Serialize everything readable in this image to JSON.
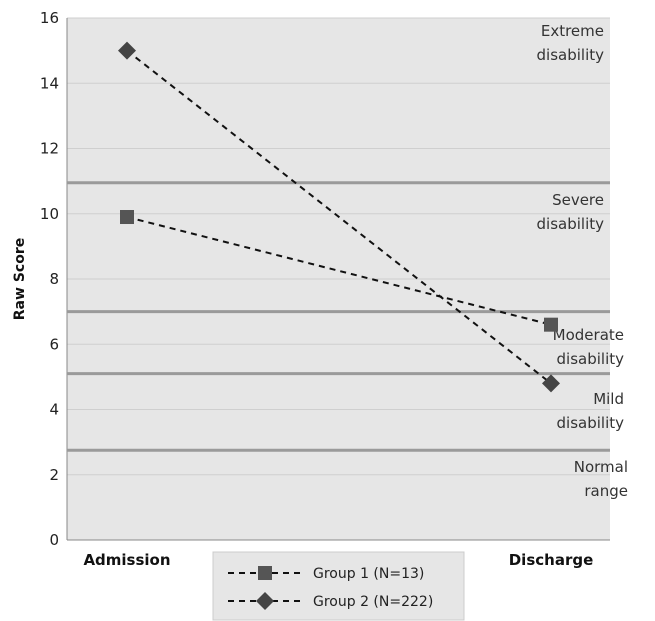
{
  "chart_data": {
    "type": "line",
    "title": "",
    "xlabel": "",
    "ylabel": "Raw Score",
    "categories": [
      "Admission",
      "Discharge"
    ],
    "ylim": [
      0,
      16
    ],
    "yticks": [
      0,
      2,
      4,
      6,
      8,
      10,
      12,
      14,
      16
    ],
    "grid": true,
    "series": [
      {
        "name": "Group 1 (N=13)",
        "marker": "square",
        "values": [
          9.9,
          6.6
        ],
        "color": "#555555"
      },
      {
        "name": "Group 2 (N=222)",
        "marker": "diamond",
        "values": [
          15.0,
          4.8
        ],
        "color": "#444444"
      }
    ],
    "thresholds": [
      2.75,
      5.1,
      7.0,
      10.95
    ],
    "bands": [
      {
        "label": [
          "Extreme",
          "disability"
        ]
      },
      {
        "label": [
          "Severe",
          "disability"
        ]
      },
      {
        "label": [
          "Moderate",
          "disability"
        ]
      },
      {
        "label": [
          "Mild",
          "disability"
        ]
      },
      {
        "label": [
          "Normal",
          "range"
        ]
      }
    ],
    "legend_position": "bottom-center",
    "colors": {
      "plot_bg": "#e6e6e6",
      "gridline": "#cfcfcf",
      "threshold": "#9a9a9a",
      "series_line": "#111111"
    }
  }
}
